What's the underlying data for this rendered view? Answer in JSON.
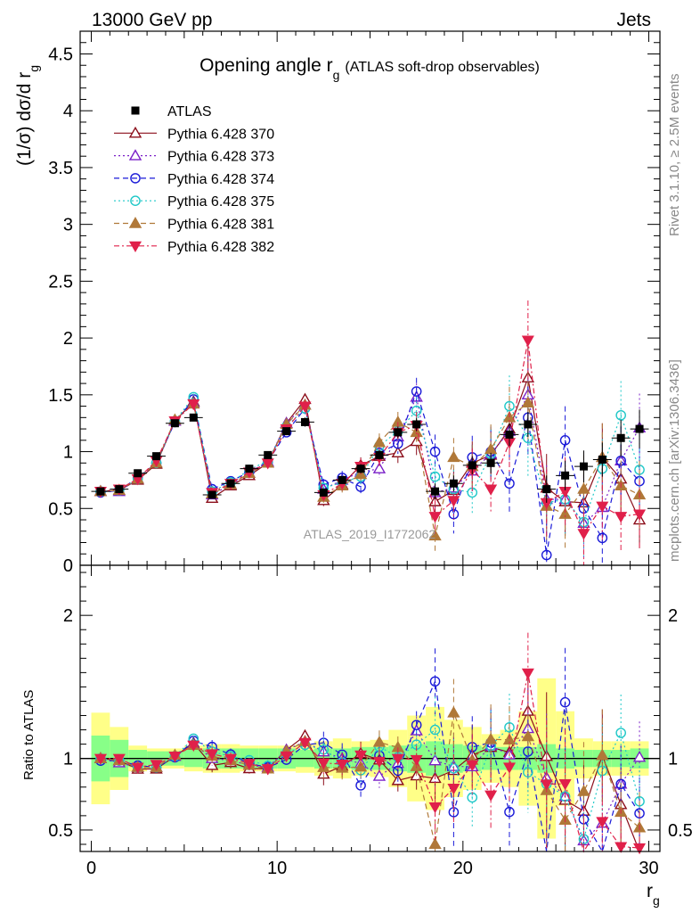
{
  "header": {
    "left": "13000 GeV pp",
    "right": "Jets"
  },
  "side_labels": {
    "rivet": "Rivet 3.1.10, ≥ 2.5M events",
    "mcplots": "mcplots.cern.ch [arXiv:1306.3436]"
  },
  "chart_data": {
    "type": "scatter",
    "title_main": "Opening angle r",
    "title_sub": "g",
    "title_suffix": "(ATLAS soft-drop observables)",
    "analysis_label": "ATLAS_2019_I1772062",
    "ylabel_main": "(1/σ) dσ/d r",
    "ylabel_sub": "g",
    "xlabel_main": "r",
    "xlabel_sub": "g",
    "ratio_ylabel": "Ratio to ATLAS",
    "xlim": [
      -0.6,
      30.6
    ],
    "ylim": [
      0,
      4.7
    ],
    "ratio_ylim": [
      0.35,
      2.35
    ],
    "x_ticks": [
      0,
      10,
      20,
      30
    ],
    "y_ticks": [
      0,
      0.5,
      1,
      1.5,
      2,
      2.5,
      3,
      3.5,
      4,
      4.5
    ],
    "y_tick_labels": [
      "0",
      "0.5",
      "1",
      "1.5",
      "2",
      "2.5",
      "3",
      "3.5",
      "4",
      "4.5"
    ],
    "ratio_ticks": [
      0.5,
      1,
      2
    ],
    "ratio_tick_labels": [
      "0.5",
      "1",
      "2"
    ],
    "x": [
      0.5,
      1.5,
      2.5,
      3.5,
      4.5,
      5.5,
      6.5,
      7.5,
      8.5,
      9.5,
      10.5,
      11.5,
      12.5,
      13.5,
      14.5,
      15.5,
      16.5,
      17.5,
      18.5,
      19.5,
      20.5,
      21.5,
      22.5,
      23.5,
      24.5,
      25.5,
      26.5,
      27.5,
      28.5,
      29.5
    ],
    "data": {
      "name": "ATLAS",
      "values": [
        0.65,
        0.67,
        0.81,
        0.96,
        1.25,
        1.3,
        0.62,
        0.72,
        0.85,
        0.97,
        1.18,
        1.26,
        0.64,
        0.75,
        0.85,
        0.97,
        1.17,
        1.24,
        0.65,
        0.72,
        0.88,
        0.9,
        1.15,
        1.24,
        0.67,
        0.79,
        0.87,
        0.93,
        1.12,
        1.2
      ],
      "errors": [
        0.01,
        0.01,
        0.02,
        0.02,
        0.03,
        0.03,
        0.02,
        0.02,
        0.03,
        0.03,
        0.03,
        0.04,
        0.03,
        0.03,
        0.04,
        0.04,
        0.05,
        0.06,
        0.07,
        0.07,
        0.08,
        0.09,
        0.1,
        0.11,
        0.12,
        0.13,
        0.14,
        0.15,
        0.16,
        0.17
      ],
      "ratio_band_inner": [
        0.16,
        0.13,
        0.06,
        0.05,
        0.05,
        0.06,
        0.07,
        0.07,
        0.07,
        0.07,
        0.07,
        0.06,
        0.07,
        0.07,
        0.08,
        0.08,
        0.09,
        0.1,
        0.12,
        0.1,
        0.09,
        0.08,
        0.08,
        0.08,
        0.1,
        0.07,
        0.06,
        0.06,
        0.06,
        0.07
      ],
      "ratio_band_outer": [
        0.32,
        0.22,
        0.09,
        0.07,
        0.07,
        0.09,
        0.1,
        0.1,
        0.09,
        0.09,
        0.09,
        0.1,
        0.12,
        0.14,
        0.12,
        0.13,
        0.2,
        0.3,
        0.36,
        0.27,
        0.22,
        0.17,
        0.2,
        0.33,
        0.56,
        0.33,
        0.14,
        0.12,
        0.12,
        0.12
      ]
    },
    "series": [
      {
        "name": "Pythia 6.428 370",
        "color": "#8b0d1a",
        "marker": "triangle-up-open",
        "line": "solid",
        "values": [
          0.65,
          0.66,
          0.75,
          0.89,
          1.27,
          1.44,
          0.59,
          0.7,
          0.79,
          0.9,
          1.25,
          1.46,
          0.57,
          0.71,
          0.88,
          0.96,
          0.99,
          1.09,
          0.56,
          0.66,
          0.9,
          0.97,
          1.2,
          1.65,
          0.68,
          0.56,
          0.55,
          0.95,
          0.76,
          0.4
        ],
        "errors": [
          0.01,
          0.01,
          0.02,
          0.02,
          0.03,
          0.03,
          0.03,
          0.03,
          0.03,
          0.04,
          0.04,
          0.05,
          0.05,
          0.06,
          0.07,
          0.08,
          0.09,
          0.12,
          0.15,
          0.17,
          0.19,
          0.22,
          0.27,
          0.35,
          0.3,
          0.3,
          0.3,
          0.3,
          0.3,
          0.25
        ]
      },
      {
        "name": "Pythia 6.428 373",
        "color": "#7a20c8",
        "marker": "triangle-up-open",
        "line": "dotted",
        "values": [
          0.65,
          0.65,
          0.76,
          0.9,
          1.27,
          1.43,
          0.62,
          0.71,
          0.81,
          0.91,
          1.25,
          1.41,
          0.67,
          0.75,
          0.82,
          0.85,
          1.13,
          1.48,
          0.64,
          0.68,
          0.83,
          0.98,
          1.18,
          1.5,
          0.58,
          0.58,
          0.37,
          0.51,
          0.92,
          1.21
        ],
        "errors": [
          0.01,
          0.01,
          0.02,
          0.02,
          0.03,
          0.03,
          0.03,
          0.03,
          0.03,
          0.04,
          0.04,
          0.05,
          0.05,
          0.06,
          0.07,
          0.08,
          0.09,
          0.12,
          0.15,
          0.17,
          0.19,
          0.22,
          0.27,
          0.35,
          0.3,
          0.3,
          0.3,
          0.3,
          0.3,
          0.3
        ]
      },
      {
        "name": "Pythia 6.428 374",
        "color": "#1a1ad8",
        "marker": "circle-open",
        "line": "dashed",
        "values": [
          0.64,
          0.66,
          0.77,
          0.9,
          1.26,
          1.46,
          0.67,
          0.74,
          0.82,
          0.91,
          1.17,
          1.38,
          0.71,
          0.77,
          0.69,
          0.99,
          1.07,
          1.53,
          1.0,
          0.45,
          0.95,
          1.0,
          0.72,
          1.3,
          0.09,
          1.1,
          0.5,
          0.24,
          0.92,
          0.74
        ],
        "errors": [
          0.01,
          0.01,
          0.02,
          0.02,
          0.03,
          0.03,
          0.03,
          0.03,
          0.03,
          0.04,
          0.04,
          0.05,
          0.05,
          0.06,
          0.07,
          0.08,
          0.09,
          0.12,
          0.15,
          0.17,
          0.19,
          0.22,
          0.27,
          0.35,
          0.3,
          0.3,
          0.3,
          0.3,
          0.3,
          0.3
        ]
      },
      {
        "name": "Pythia 6.428 375",
        "color": "#1fc8c8",
        "marker": "circle-open",
        "line": "dotted",
        "values": [
          0.65,
          0.66,
          0.76,
          0.9,
          1.27,
          1.48,
          0.65,
          0.73,
          0.84,
          0.92,
          1.22,
          1.38,
          0.68,
          0.73,
          0.78,
          1.05,
          1.18,
          1.36,
          0.78,
          0.67,
          0.64,
          0.98,
          1.4,
          1.12,
          0.55,
          0.58,
          0.38,
          0.85,
          1.32,
          0.84
        ],
        "errors": [
          0.01,
          0.01,
          0.02,
          0.02,
          0.03,
          0.03,
          0.03,
          0.03,
          0.03,
          0.04,
          0.04,
          0.05,
          0.05,
          0.06,
          0.07,
          0.08,
          0.09,
          0.12,
          0.15,
          0.17,
          0.19,
          0.22,
          0.27,
          0.35,
          0.3,
          0.3,
          0.3,
          0.3,
          0.3,
          0.3
        ]
      },
      {
        "name": "Pythia 6.428 381",
        "color": "#b07838",
        "marker": "triangle-up-filled",
        "line": "dashed",
        "values": [
          0.65,
          0.66,
          0.76,
          0.9,
          1.28,
          1.42,
          0.63,
          0.71,
          0.81,
          0.9,
          1.24,
          1.41,
          0.6,
          0.7,
          0.8,
          1.08,
          1.26,
          1.17,
          0.26,
          0.95,
          0.87,
          1.02,
          1.3,
          1.43,
          0.52,
          0.45,
          0.67,
          0.95,
          0.7,
          0.62
        ],
        "errors": [
          0.01,
          0.01,
          0.02,
          0.02,
          0.03,
          0.03,
          0.03,
          0.03,
          0.03,
          0.04,
          0.04,
          0.05,
          0.05,
          0.06,
          0.07,
          0.08,
          0.09,
          0.12,
          0.15,
          0.17,
          0.19,
          0.22,
          0.27,
          0.35,
          0.3,
          0.3,
          0.3,
          0.3,
          0.3,
          0.3
        ]
      },
      {
        "name": "Pythia 6.428 382",
        "color": "#e0204a",
        "marker": "triangle-down-filled",
        "line": "dashdot",
        "values": [
          0.65,
          0.67,
          0.76,
          0.92,
          1.27,
          1.42,
          0.64,
          0.72,
          0.82,
          0.9,
          1.2,
          1.4,
          0.62,
          0.72,
          0.87,
          0.95,
          1.17,
          1.23,
          0.43,
          0.57,
          0.84,
          0.67,
          1.08,
          1.98,
          0.55,
          0.65,
          0.28,
          0.52,
          0.43,
          0.45
        ],
        "errors": [
          0.01,
          0.01,
          0.02,
          0.02,
          0.03,
          0.03,
          0.03,
          0.03,
          0.03,
          0.04,
          0.04,
          0.05,
          0.05,
          0.06,
          0.07,
          0.08,
          0.09,
          0.12,
          0.15,
          0.17,
          0.19,
          0.22,
          0.27,
          0.35,
          0.3,
          0.3,
          0.3,
          0.3,
          0.3,
          0.3
        ]
      }
    ],
    "legend_position": "top-left"
  }
}
